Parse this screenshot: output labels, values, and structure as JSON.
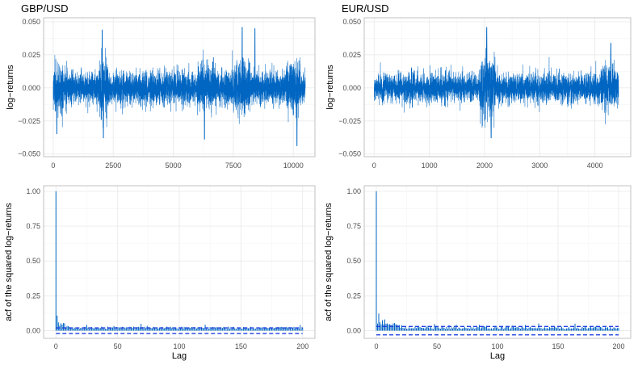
{
  "colors": {
    "series": "#0066c2",
    "ci": "#1f3fe0",
    "grid_major": "#ebebeb",
    "grid_minor": "#f5f5f5",
    "panel_border": "#b3b3b3"
  },
  "chart_data": [
    {
      "type": "line",
      "title": "GBP/USD",
      "xlabel": "",
      "ylabel": "log−returns",
      "xlim": [
        -400,
        10900
      ],
      "ylim": [
        -0.052,
        0.053
      ],
      "x_ticks": [
        0,
        2500,
        5000,
        7500,
        10000
      ],
      "x_tick_labels": [
        "0",
        "2500",
        "5000",
        "7500",
        "10000"
      ],
      "y_ticks": [
        -0.05,
        -0.025,
        0,
        0.025,
        0.05
      ],
      "y_tick_labels": [
        "−0.050",
        "−0.025",
        "0.000",
        "0.025",
        "0.050"
      ],
      "n": 10500,
      "base_volatility": 0.0058,
      "volatility_regimes": [
        {
          "x": [
            0,
            400
          ],
          "level": 1.6
        },
        {
          "x": [
            1900,
            2300
          ],
          "level": 2.0
        },
        {
          "x": [
            6000,
            6800
          ],
          "level": 1.4
        },
        {
          "x": [
            7400,
            8200
          ],
          "level": 1.5
        },
        {
          "x": [
            9700,
            10300
          ],
          "level": 1.6
        }
      ],
      "notable_points": [
        {
          "x": 150,
          "y": -0.035
        },
        {
          "x": 2040,
          "y": 0.044
        },
        {
          "x": 2090,
          "y": -0.038
        },
        {
          "x": 6300,
          "y": -0.039
        },
        {
          "x": 7870,
          "y": 0.046
        },
        {
          "x": 8400,
          "y": 0.045
        },
        {
          "x": 10150,
          "y": -0.044
        }
      ]
    },
    {
      "type": "line",
      "title": "EUR/USD",
      "xlabel": "",
      "ylabel": "log−returns",
      "xlim": [
        -180,
        4650
      ],
      "ylim": [
        -0.052,
        0.053
      ],
      "x_ticks": [
        0,
        1000,
        2000,
        3000,
        4000
      ],
      "x_tick_labels": [
        "0",
        "1000",
        "2000",
        "3000",
        "4000"
      ],
      "y_ticks": [
        -0.05,
        -0.025,
        0,
        0.025,
        0.05
      ],
      "y_tick_labels": [
        "−0.050",
        "−0.025",
        "0.000",
        "0.025",
        "0.050"
      ],
      "n": 4430,
      "base_volatility": 0.0052,
      "volatility_regimes": [
        {
          "x": [
            1900,
            2200
          ],
          "level": 2.0
        },
        {
          "x": [
            4100,
            4430
          ],
          "level": 1.5
        }
      ],
      "notable_points": [
        {
          "x": 2040,
          "y": 0.046
        },
        {
          "x": 2120,
          "y": -0.038
        },
        {
          "x": 4290,
          "y": 0.034
        }
      ]
    },
    {
      "type": "bar",
      "title": "",
      "xlabel": "Lag",
      "ylabel": "acf of the squared log−returns",
      "xlim": [
        -10,
        210
      ],
      "ylim": [
        -0.055,
        1.04
      ],
      "x_ticks": [
        0,
        50,
        100,
        150,
        200
      ],
      "x_tick_labels": [
        "0",
        "50",
        "100",
        "150",
        "200"
      ],
      "y_ticks": [
        0,
        0.25,
        0.5,
        0.75,
        1.0
      ],
      "y_tick_labels": [
        "0.00",
        "0.25",
        "0.50",
        "0.75",
        "1.00"
      ],
      "max_lag": 200,
      "acf_lag0": 1.0,
      "acf_early_level": 0.1,
      "acf_decay_per_lag": 0.008,
      "acf_floor": 0.02,
      "confidence_bands": [
        0.02,
        -0.02
      ]
    },
    {
      "type": "bar",
      "title": "",
      "xlabel": "Lag",
      "ylabel": "acf of the squared log−returns",
      "xlim": [
        -10,
        210
      ],
      "ylim": [
        -0.055,
        1.04
      ],
      "x_ticks": [
        0,
        50,
        100,
        150,
        200
      ],
      "x_tick_labels": [
        "0",
        "50",
        "100",
        "150",
        "200"
      ],
      "y_ticks": [
        0,
        0.25,
        0.5,
        0.75,
        1.0
      ],
      "y_tick_labels": [
        "0.00",
        "0.25",
        "0.50",
        "0.75",
        "1.00"
      ],
      "max_lag": 200,
      "acf_lag0": 1.0,
      "acf_early_level": 0.11,
      "acf_decay_per_lag": 0.006,
      "acf_floor": 0.02,
      "confidence_bands": [
        0.03,
        -0.03
      ]
    }
  ]
}
